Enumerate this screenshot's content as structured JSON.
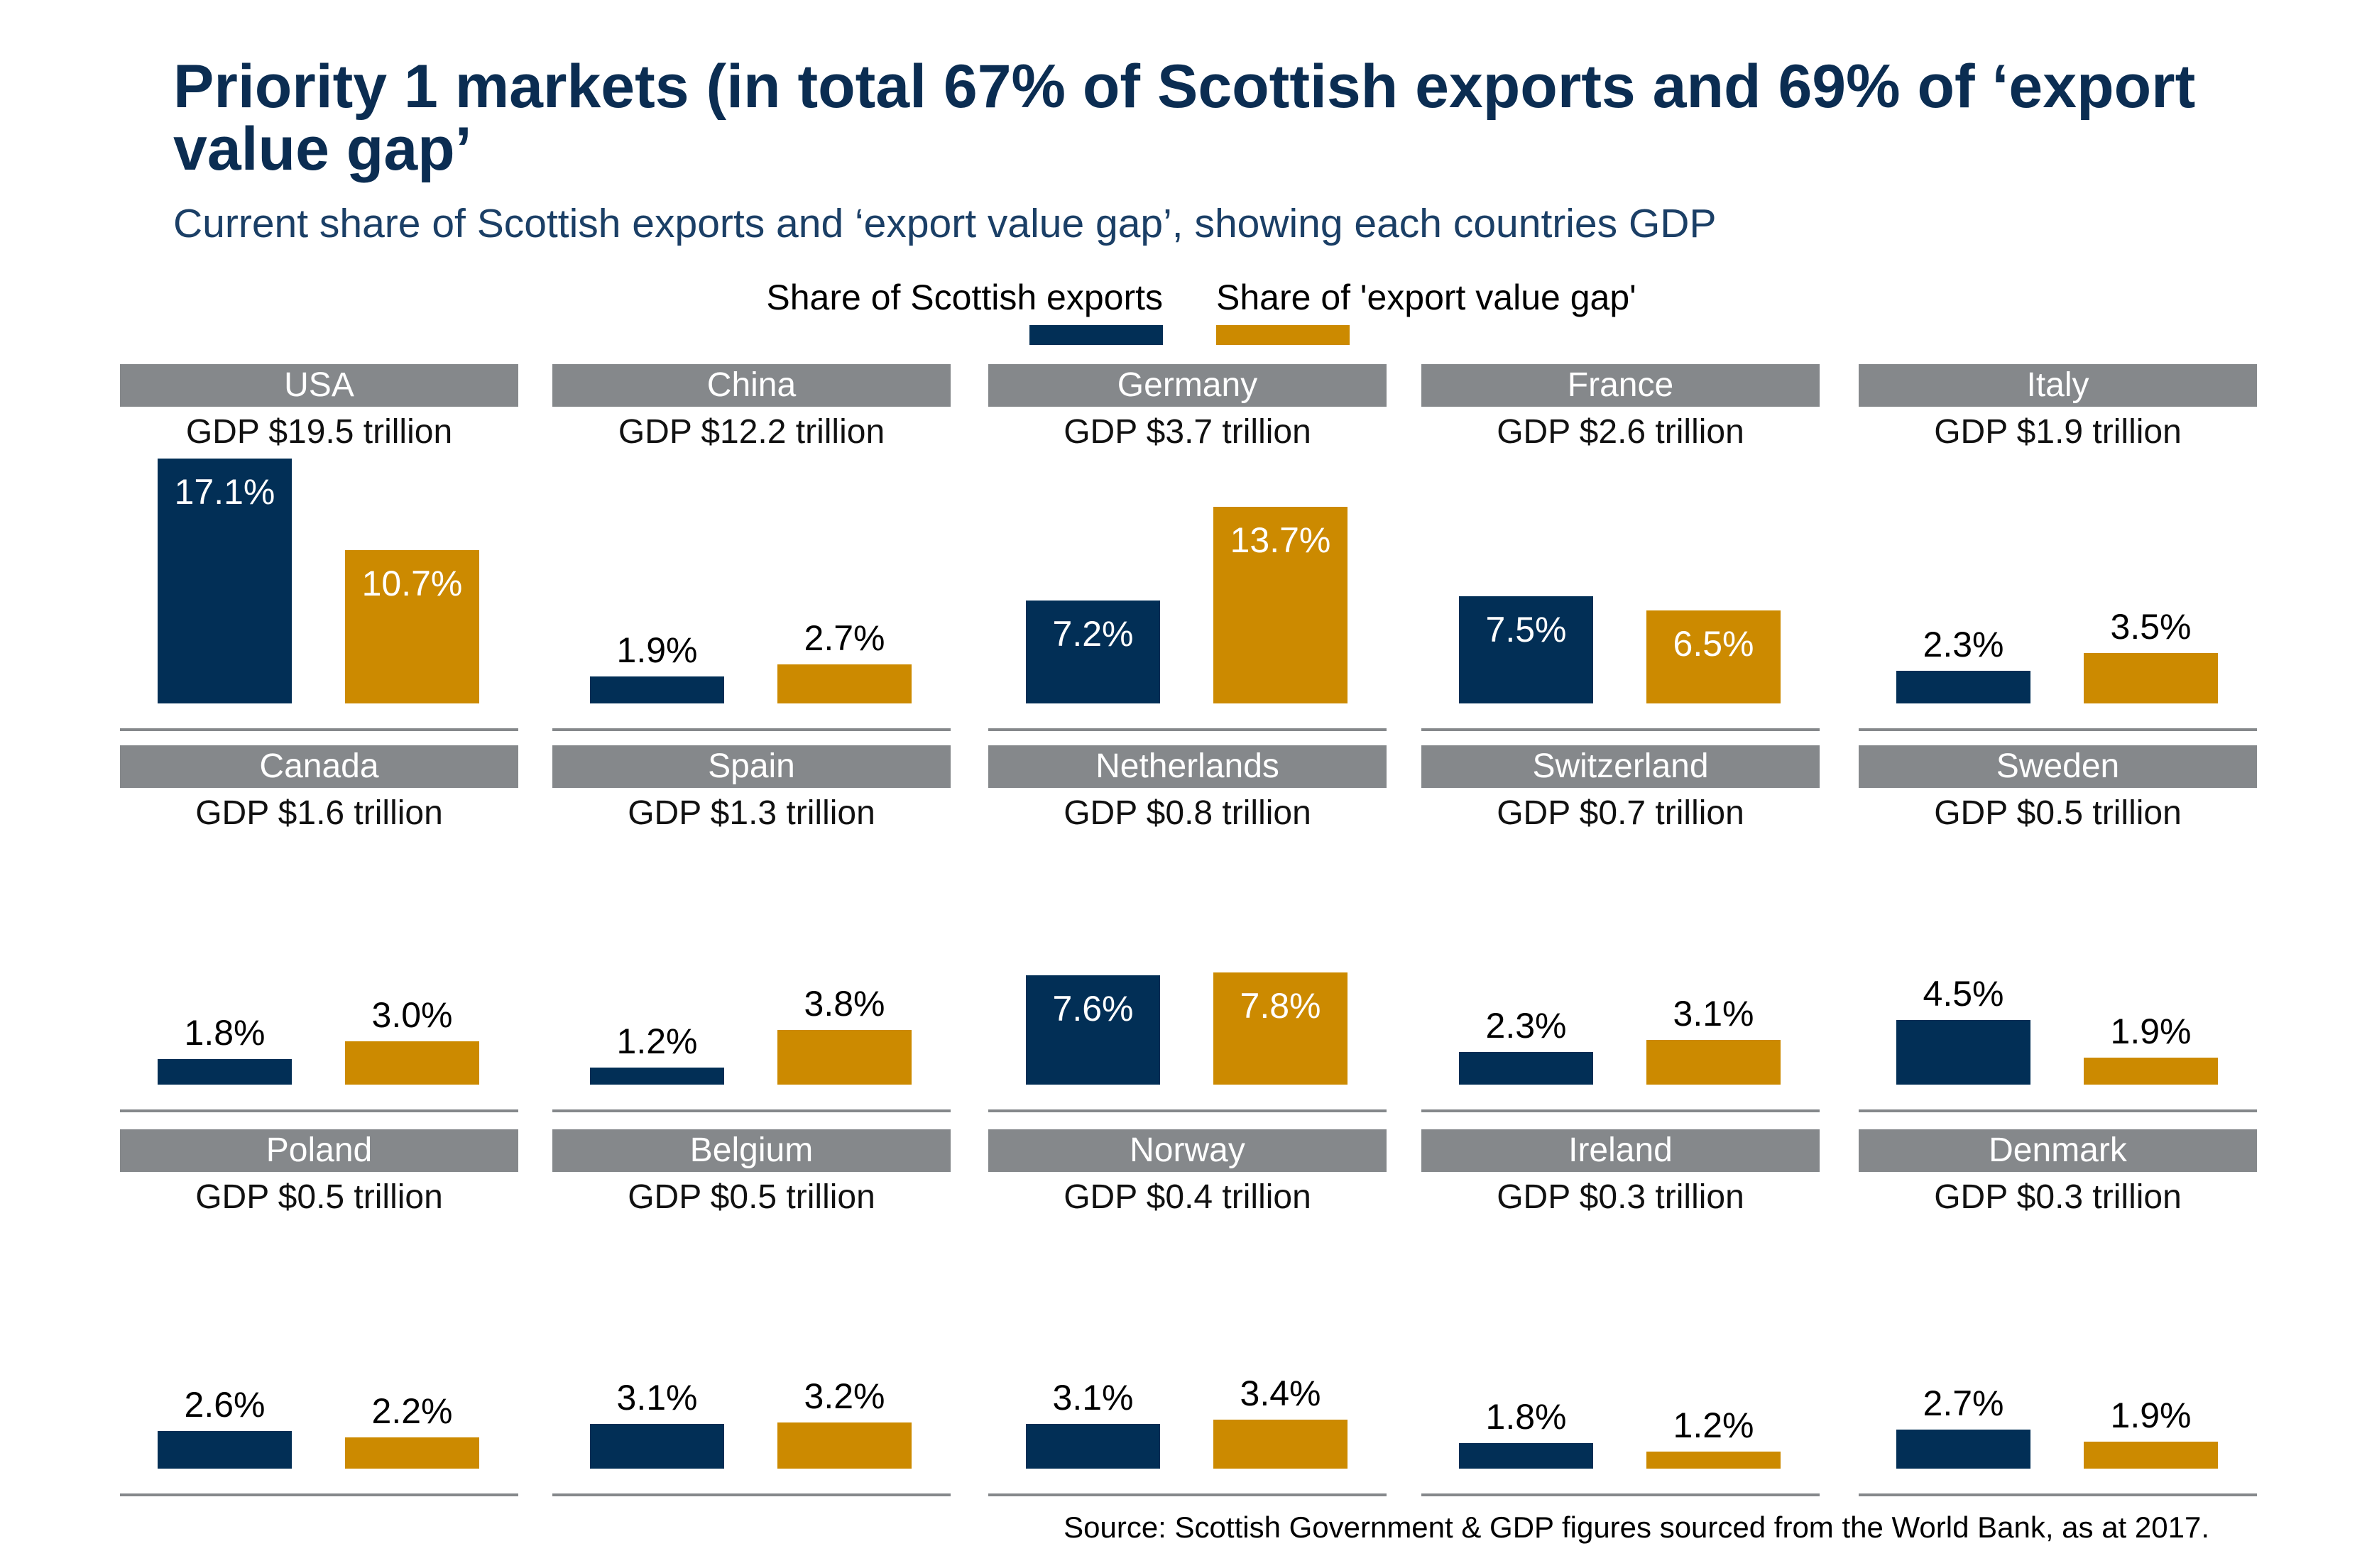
{
  "title": "Priority 1 markets (in total 67% of Scottish exports and 69% of ‘export value gap’",
  "subtitle": "Current share of Scottish exports and ‘export value gap’, showing each countries GDP",
  "source": "Source: Scottish Government & GDP figures sourced from the World Bank, as at 2017.",
  "colors": {
    "exports": "#022f56",
    "gap": "#cc8a00",
    "header": "#85888b",
    "title": "#0b2d52"
  },
  "chart_data": {
    "type": "bar",
    "title": "Priority 1 markets (in total 67% of Scottish exports and 69% of ‘export value gap’",
    "subtitle": "Current share of Scottish exports and ‘export value gap’, showing each countries GDP",
    "legend": [
      "Share of Scottish exports",
      "Share of 'export value gap'"
    ],
    "legend_position": "top",
    "grid": false,
    "unit": "%",
    "panels": [
      {
        "country": "USA",
        "gdp": "GDP $19.5 trillion",
        "exports": 17.1,
        "gap": 10.7
      },
      {
        "country": "China",
        "gdp": "GDP $12.2 trillion",
        "exports": 1.9,
        "gap": 2.7
      },
      {
        "country": "Germany",
        "gdp": "GDP $3.7 trillion",
        "exports": 7.2,
        "gap": 13.7
      },
      {
        "country": "France",
        "gdp": "GDP $2.6 trillion",
        "exports": 7.5,
        "gap": 6.5
      },
      {
        "country": "Italy",
        "gdp": "GDP $1.9 trillion",
        "exports": 2.3,
        "gap": 3.5
      },
      {
        "country": "Canada",
        "gdp": "GDP $1.6 trillion",
        "exports": 1.8,
        "gap": 3.0
      },
      {
        "country": "Spain",
        "gdp": "GDP $1.3 trillion",
        "exports": 1.2,
        "gap": 3.8
      },
      {
        "country": "Netherlands",
        "gdp": "GDP $0.8 trillion",
        "exports": 7.6,
        "gap": 7.8
      },
      {
        "country": "Switzerland",
        "gdp": "GDP $0.7 trillion",
        "exports": 2.3,
        "gap": 3.1
      },
      {
        "country": "Sweden",
        "gdp": "GDP $0.5 trillion",
        "exports": 4.5,
        "gap": 1.9
      },
      {
        "country": "Poland",
        "gdp": "GDP $0.5 trillion",
        "exports": 2.6,
        "gap": 2.2
      },
      {
        "country": "Belgium",
        "gdp": "GDP $0.5 trillion",
        "exports": 3.1,
        "gap": 3.2
      },
      {
        "country": "Norway",
        "gdp": "GDP $0.4 trillion",
        "exports": 3.1,
        "gap": 3.4
      },
      {
        "country": "Ireland",
        "gdp": "GDP $0.3 trillion",
        "exports": 1.8,
        "gap": 1.2
      },
      {
        "country": "Denmark",
        "gdp": "GDP $0.3 trillion",
        "exports": 2.7,
        "gap": 1.9
      }
    ]
  }
}
